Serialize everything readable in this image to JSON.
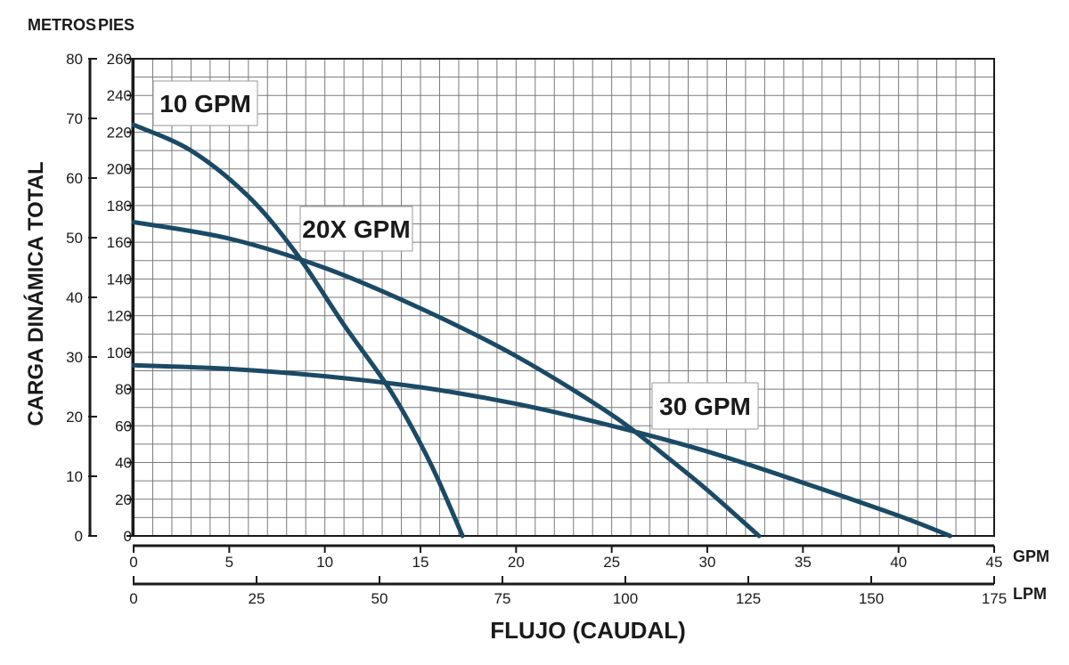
{
  "chart_data": {
    "type": "line",
    "title": "",
    "xlabel": "FLUJO (CAUDAL)",
    "ylabel": "CARGA DINÁMICA TOTAL",
    "grid": true,
    "x_axes": [
      {
        "unit": "GPM",
        "range": [
          0,
          45
        ],
        "ticks": [
          "0",
          "5",
          "10",
          "15",
          "20",
          "25",
          "30",
          "35",
          "40",
          "45"
        ]
      },
      {
        "unit": "LPM",
        "range": [
          0,
          175
        ],
        "ticks": [
          "0",
          "25",
          "50",
          "75",
          "100",
          "125",
          "150",
          "175"
        ]
      }
    ],
    "y_axes": [
      {
        "unit": "METROS",
        "range": [
          0,
          80
        ],
        "ticks": [
          "0",
          "10",
          "20",
          "30",
          "40",
          "50",
          "60",
          "70",
          "80"
        ]
      },
      {
        "unit": "PIES",
        "range": [
          0,
          260
        ],
        "ticks": [
          "0",
          "20",
          "40",
          "60",
          "80",
          "100",
          "120",
          "140",
          "160",
          "180",
          "200",
          "220",
          "240",
          "260"
        ]
      }
    ],
    "x_unit": "GPM",
    "y_unit": "PIES",
    "series": [
      {
        "name": "10 GPM",
        "x": [
          0,
          3,
          6,
          8.5,
          11,
          13.5,
          15.5,
          17.2
        ],
        "y": [
          224,
          210,
          185,
          154,
          115,
          78,
          40,
          0
        ]
      },
      {
        "name": "20X GPM",
        "x": [
          0,
          5,
          10,
          15,
          20,
          25,
          28,
          30,
          32.7
        ],
        "y": [
          171,
          162,
          146,
          124,
          98,
          66,
          42,
          25,
          0
        ]
      },
      {
        "name": "30 GPM",
        "x": [
          0,
          5,
          10,
          15,
          20,
          25,
          30,
          35,
          40,
          42.7
        ],
        "y": [
          93,
          91,
          87,
          81,
          72,
          60,
          46,
          29,
          11,
          0
        ]
      }
    ]
  }
}
